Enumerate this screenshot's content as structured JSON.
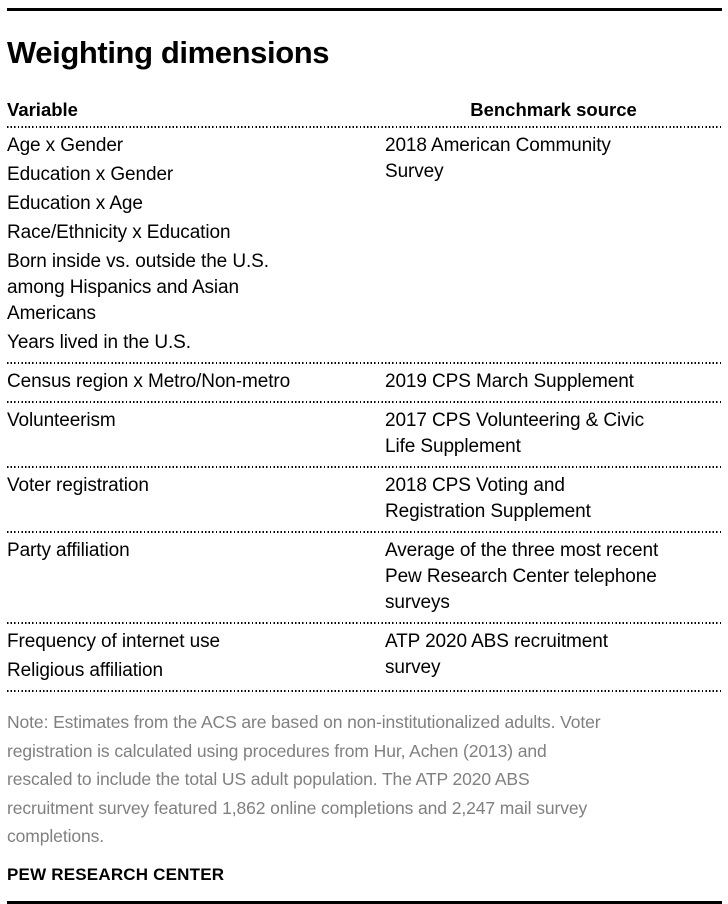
{
  "title": "Weighting dimensions",
  "table": {
    "variable_header": "Variable",
    "benchmark_header": "Benchmark source",
    "rows": [
      {
        "variables": [
          "Age x Gender",
          "Education x Gender",
          "Education x Age",
          "Race/Ethnicity x Education",
          "Born inside vs. outside the U.S.\namong Hispanics and Asian\nAmericans",
          "Years lived in the U.S."
        ],
        "benchmark": "2018 American Community\nSurvey"
      },
      {
        "variables": [
          "Census region x Metro/Non-metro"
        ],
        "benchmark": "2019 CPS March Supplement"
      },
      {
        "variables": [
          "Volunteerism"
        ],
        "benchmark": "2017 CPS Volunteering & Civic\nLife Supplement"
      },
      {
        "variables": [
          "Voter registration"
        ],
        "benchmark": "2018 CPS Voting and\nRegistration Supplement"
      },
      {
        "variables": [
          "Party affiliation"
        ],
        "benchmark": "Average of the three most recent\nPew Research Center telephone\nsurveys"
      },
      {
        "variables": [
          "Frequency of internet use",
          "Religious affiliation"
        ],
        "benchmark": "ATP 2020 ABS recruitment\nsurvey"
      }
    ]
  },
  "note": "Note: Estimates from the ACS are based on non-institutionalized adults. Voter\nregistration is calculated using procedures from Hur, Achen (2013) and\nrescaled to include the total US adult population. The ATP 2020 ABS\nrecruitment survey featured 1,862 online completions and 2,247 mail survey\ncompletions.",
  "footer": "PEW RESEARCH CENTER",
  "colors": {
    "text": "#000000",
    "note_text": "#808080",
    "rule": "#000000",
    "background": "#ffffff"
  },
  "chart_data": {
    "type": "table",
    "title": "Weighting dimensions",
    "columns": [
      "Variable",
      "Benchmark source"
    ],
    "rows": [
      {
        "variable": [
          "Age x Gender",
          "Education x Gender",
          "Education x Age",
          "Race/Ethnicity x Education",
          "Born inside vs. outside the U.S. among Hispanics and Asian Americans",
          "Years lived in the U.S."
        ],
        "benchmark_source": "2018 American Community Survey"
      },
      {
        "variable": [
          "Census region x Metro/Non-metro"
        ],
        "benchmark_source": "2019 CPS March Supplement"
      },
      {
        "variable": [
          "Volunteerism"
        ],
        "benchmark_source": "2017 CPS Volunteering & Civic Life Supplement"
      },
      {
        "variable": [
          "Voter registration"
        ],
        "benchmark_source": "2018 CPS Voting and Registration Supplement"
      },
      {
        "variable": [
          "Party affiliation"
        ],
        "benchmark_source": "Average of the three most recent Pew Research Center telephone surveys"
      },
      {
        "variable": [
          "Frequency of internet use",
          "Religious affiliation"
        ],
        "benchmark_source": "ATP 2020 ABS recruitment survey"
      }
    ],
    "source_label": "PEW RESEARCH CENTER",
    "note": "Note: Estimates from the ACS are based on non-institutionalized adults. Voter registration is calculated using procedures from Hur, Achen (2013) and rescaled to include the total US adult population. The ATP 2020 ABS recruitment survey featured 1,862 online completions and 2,247 mail survey completions."
  }
}
